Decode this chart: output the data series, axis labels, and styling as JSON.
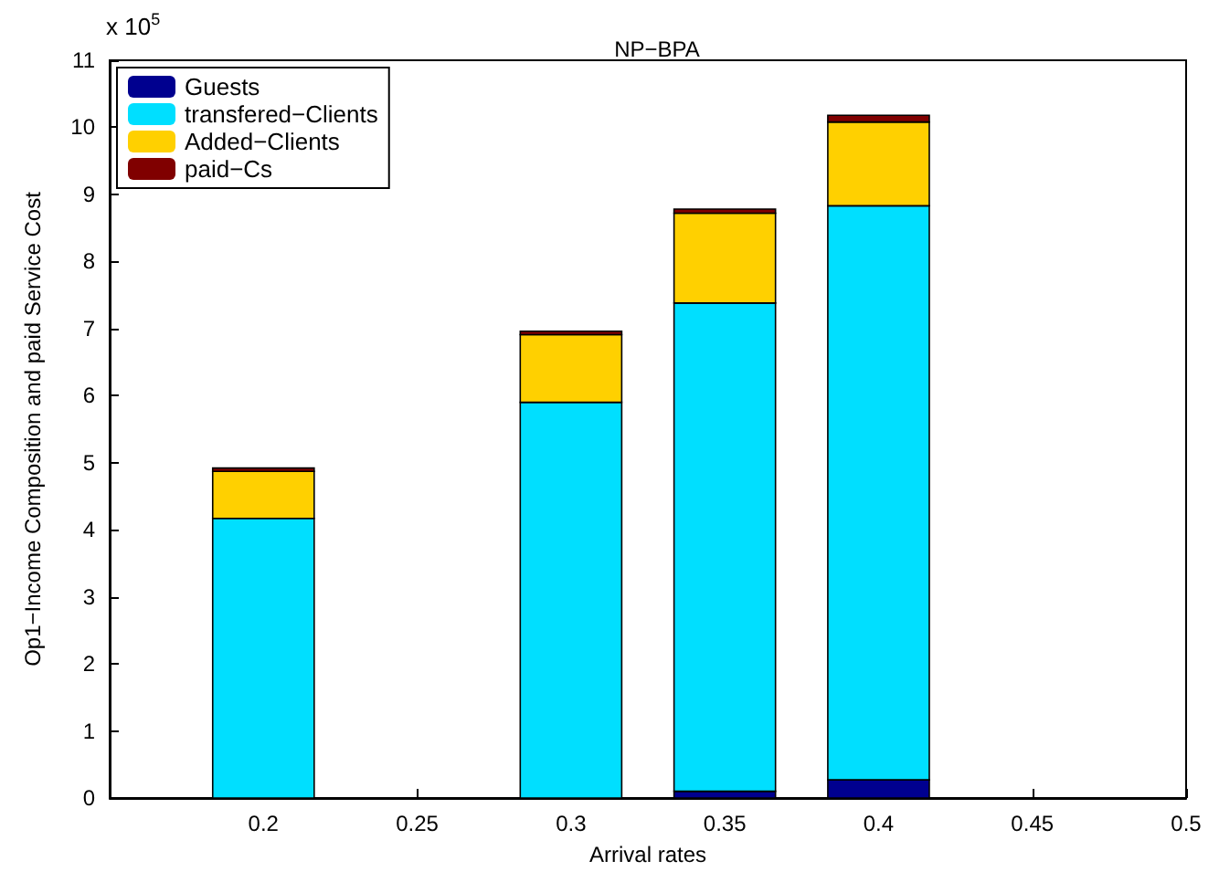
{
  "chart_data": {
    "type": "bar",
    "title": "NP−BPA",
    "xlabel": "Arrival rates",
    "ylabel": "Op1−Income Composition and paid Service Cost",
    "annotations": [
      "x 10$^{5}$"
    ],
    "x": [
      0.2,
      0.3,
      0.35,
      0.4
    ],
    "stacked": true,
    "series": [
      {
        "name": "Guests",
        "color": "#00008f",
        "values": [
          0,
          null,
          0.1,
          0.27
        ]
      },
      {
        "name": "transfered−Clients",
        "color": "#00dfff",
        "values": [
          4.17,
          5.9,
          7.28,
          8.56
        ]
      },
      {
        "name": "Added−Clients",
        "color": "#ffd000",
        "values": [
          0.7,
          1.01,
          1.34,
          1.25
        ]
      },
      {
        "name": "paid−Cs",
        "color": "#800000",
        "values": [
          0.05,
          0.05,
          0.06,
          0.1
        ]
      }
    ],
    "xlim": [
      0.15,
      0.5
    ],
    "xticks": [
      0.2,
      0.25,
      0.3,
      0.35,
      0.4,
      0.45,
      0.5
    ],
    "ylim": [
      0,
      11
    ],
    "yticks": [
      0,
      1,
      2,
      3,
      4,
      5,
      6,
      7,
      8,
      9,
      10,
      11
    ],
    "grid": false,
    "legend": "top left"
  }
}
